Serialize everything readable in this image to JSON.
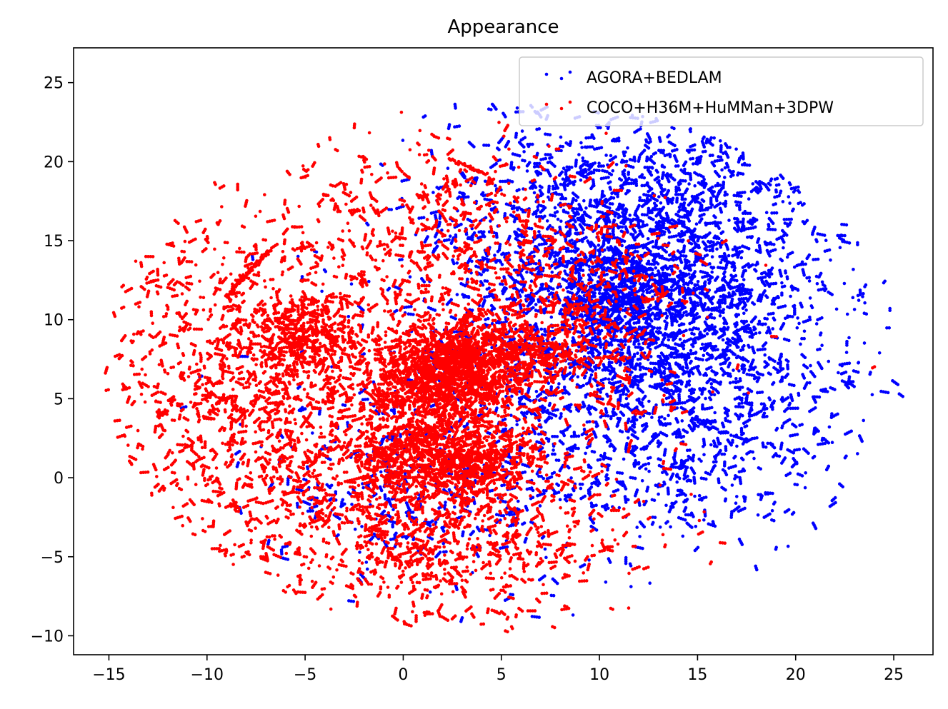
{
  "chart_data": {
    "type": "scatter",
    "title": "Appearance",
    "xlabel": "",
    "ylabel": "",
    "xlim": [
      -16.8,
      27.0
    ],
    "ylim": [
      -11.2,
      27.2
    ],
    "xticks": [
      -15,
      -10,
      -5,
      0,
      5,
      10,
      15,
      20,
      25
    ],
    "xtick_labels": [
      "−15",
      "−10",
      "−5",
      "0",
      "5",
      "10",
      "15",
      "20",
      "25"
    ],
    "yticks": [
      -10,
      -5,
      0,
      5,
      10,
      15,
      20,
      25
    ],
    "ytick_labels": [
      "−10",
      "−5",
      "0",
      "5",
      "10",
      "15",
      "20",
      "25"
    ],
    "grid": false,
    "legend_position": "top-right",
    "series": [
      {
        "name": "AGORA+BEDLAM",
        "color": "#0000ff",
        "clusters": [
          {
            "cx": 11.5,
            "cy": 11.0,
            "sx": 4.0,
            "sy": 4.2,
            "n": 2600
          },
          {
            "cx": 16.5,
            "cy": 9.0,
            "sx": 4.2,
            "sy": 5.5,
            "n": 1900
          },
          {
            "cx": 8.0,
            "cy": 17.0,
            "sx": 4.0,
            "sy": 3.2,
            "n": 900
          },
          {
            "cx": 14.0,
            "cy": 18.5,
            "sx": 4.0,
            "sy": 2.8,
            "n": 650
          },
          {
            "cx": 5.0,
            "cy": 5.0,
            "sx": 5.0,
            "sy": 5.5,
            "n": 1100
          },
          {
            "cx": 12.0,
            "cy": 1.5,
            "sx": 4.0,
            "sy": 3.0,
            "n": 650
          },
          {
            "cx": 0.0,
            "cy": -1.0,
            "sx": 3.5,
            "sy": 2.5,
            "n": 450
          },
          {
            "cx": 11.0,
            "cy": 11.5,
            "sx": 1.6,
            "sy": 1.6,
            "n": 700
          }
        ]
      },
      {
        "name": "COCO+H36M+HuMMan+3DPW",
        "color": "#ff0000",
        "clusters": [
          {
            "cx": 2.0,
            "cy": 6.5,
            "sx": 1.8,
            "sy": 1.6,
            "n": 1700
          },
          {
            "cx": 1.5,
            "cy": 1.5,
            "sx": 2.0,
            "sy": 1.6,
            "n": 1400
          },
          {
            "cx": -5.0,
            "cy": 9.0,
            "sx": 1.4,
            "sy": 1.3,
            "n": 600
          },
          {
            "cx": 3.5,
            "cy": 7.5,
            "sx": 1.5,
            "sy": 1.4,
            "n": 800
          },
          {
            "cx": -1.0,
            "cy": 4.0,
            "sx": 6.5,
            "sy": 6.5,
            "n": 3800
          },
          {
            "cx": -9.0,
            "cy": 6.0,
            "sx": 3.5,
            "sy": 5.5,
            "n": 1300
          },
          {
            "cx": 9.5,
            "cy": 11.0,
            "sx": 2.5,
            "sy": 2.8,
            "n": 800
          },
          {
            "cx": 2.0,
            "cy": -4.5,
            "sx": 4.5,
            "sy": 2.2,
            "n": 900
          },
          {
            "cx": 2.0,
            "cy": 16.0,
            "sx": 4.0,
            "sy": 3.0,
            "n": 700
          },
          {
            "cx": 6.5,
            "cy": 8.0,
            "sx": 1.2,
            "sy": 1.0,
            "n": 350
          },
          {
            "cx": 4.0,
            "cy": 1.0,
            "sx": 1.4,
            "sy": 1.1,
            "n": 400
          }
        ],
        "streaks": [
          {
            "x0": -8.8,
            "y0": 11.8,
            "x1": -6.8,
            "y1": 14.4,
            "n": 90
          },
          {
            "x0": 2.3,
            "y0": 20.2,
            "x1": 4.2,
            "y1": 19.2,
            "n": 40
          }
        ]
      }
    ],
    "bounds_ellipse": {
      "cx": 5.2,
      "cy": 7.0,
      "rx": 20.5,
      "ry": 17.0
    }
  }
}
